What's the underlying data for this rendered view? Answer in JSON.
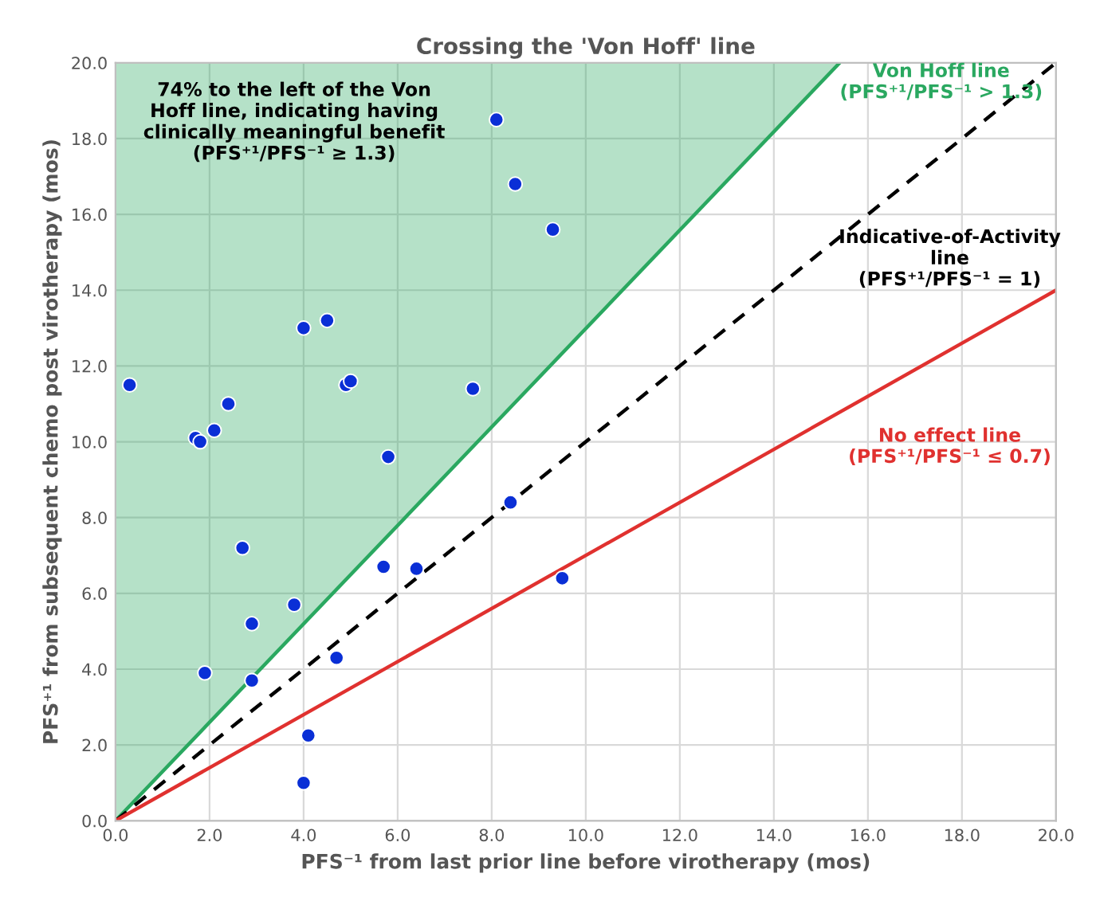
{
  "chart_data": {
    "type": "scatter",
    "title": "Crossing the 'Von Hoff' line",
    "xlabel": "PFS⁻¹ from last prior line before virotherapy (mos)",
    "ylabel": "PFS⁺¹ from subsequent chemo post virotherapy (mos)",
    "xlim": [
      0,
      20
    ],
    "ylim": [
      0,
      20
    ],
    "xticks": [
      {
        "value": 0,
        "label": "0.0"
      },
      {
        "value": 2,
        "label": "2.0"
      },
      {
        "value": 4,
        "label": "4.0"
      },
      {
        "value": 6,
        "label": "6.0"
      },
      {
        "value": 8,
        "label": "8.0"
      },
      {
        "value": 10,
        "label": "10.0"
      },
      {
        "value": 12,
        "label": "12.0"
      },
      {
        "value": 14,
        "label": "14.0"
      },
      {
        "value": 16,
        "label": "16.0"
      },
      {
        "value": 18,
        "label": "18.0"
      },
      {
        "value": 20,
        "label": "20.0"
      }
    ],
    "yticks": [
      {
        "value": 0,
        "label": "0.0"
      },
      {
        "value": 2,
        "label": "2.0"
      },
      {
        "value": 4,
        "label": "4.0"
      },
      {
        "value": 6,
        "label": "6.0"
      },
      {
        "value": 8,
        "label": "8.0"
      },
      {
        "value": 10,
        "label": "10.0"
      },
      {
        "value": 12,
        "label": "12.0"
      },
      {
        "value": 14,
        "label": "14.0"
      },
      {
        "value": 16,
        "label": "16.0"
      },
      {
        "value": 18,
        "label": "18.0"
      },
      {
        "value": 20,
        "label": "20.0"
      }
    ],
    "grid": true,
    "series": [
      {
        "type": "line",
        "name": "Von Hoff line\n(PFS⁺¹/PFS⁻¹ > 1.3)",
        "color": "#2aa860",
        "line_style": "solid",
        "x": [
          0,
          15.4
        ],
        "values": [
          0,
          20
        ],
        "lower": [
          0,
          20
        ],
        "upper": [
          20,
          20
        ]
      },
      {
        "type": "line",
        "name": "Indicative-of-Activity\nline\n(PFS⁺¹/PFS⁻¹ = 1)",
        "color": "#000000",
        "line_style": "dashed",
        "x": [
          0,
          20
        ],
        "values": [
          0,
          20
        ]
      },
      {
        "type": "line",
        "name": "No effect line\n(PFS⁺¹/PFS⁻¹ ≤ 0.7)",
        "color": "#e0312f",
        "line_style": "solid",
        "x": [
          0,
          20
        ],
        "values": [
          0,
          14
        ]
      },
      {
        "type": "scatter",
        "marker": "circle",
        "color": "#0a2fd6",
        "x": [
          8.1,
          8.5,
          9.3,
          4.0,
          4.5,
          0.3,
          4.9,
          5.0,
          7.6,
          2.4,
          2.1,
          1.7,
          1.8,
          5.8,
          8.4,
          2.7,
          5.7,
          6.4,
          9.5,
          3.8,
          2.9,
          4.7,
          1.9,
          2.9,
          4.1,
          4.0
        ],
        "values": [
          18.5,
          16.8,
          15.6,
          13.0,
          13.2,
          11.5,
          11.5,
          11.6,
          11.4,
          11.0,
          10.3,
          10.1,
          10.0,
          9.6,
          8.4,
          7.2,
          6.7,
          6.65,
          6.4,
          5.7,
          5.2,
          4.3,
          3.9,
          3.7,
          2.25,
          1.0
        ]
      }
    ],
    "annotations": [
      "74% to the left of the Von\nHoff line, indicating having\nclinically meaningful benefit\n(PFS⁺¹/PFS⁻¹ ≥ 1.3)"
    ]
  }
}
